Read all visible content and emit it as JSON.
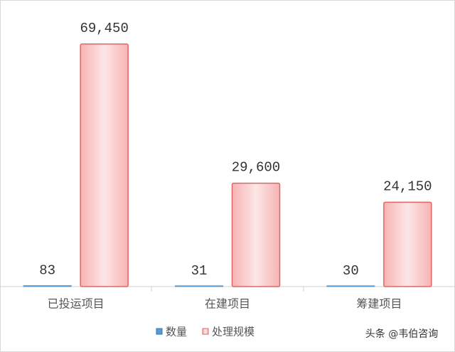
{
  "chart_data": {
    "type": "bar",
    "categories": [
      "已投运项目",
      "在建项目",
      "筹建项目"
    ],
    "series": [
      {
        "name": "数量",
        "color": "#5b9bd5",
        "values": [
          83,
          31,
          30
        ]
      },
      {
        "name": "处理规模",
        "color": "#f4a6a6",
        "values": [
          69450,
          29600,
          24150
        ],
        "value_labels": [
          "69,450",
          "29,600",
          "24,150"
        ]
      }
    ],
    "ylim": [
      0,
      80000
    ],
    "legend": "bottom",
    "watermark": "头条 @韦伯咨询"
  }
}
